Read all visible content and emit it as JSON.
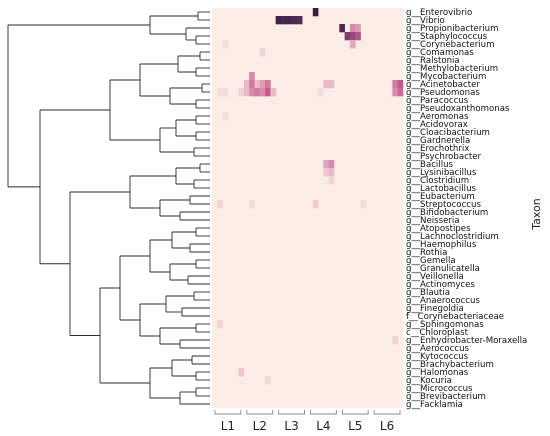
{
  "chart_data": {
    "type": "heatmap",
    "ylabel": "Taxon",
    "groups": [
      "L1",
      "L2",
      "L3",
      "L4",
      "L5",
      "L6"
    ],
    "columns_per_group": 6,
    "taxa": [
      "g__Enterovibrio",
      "g__Vibrio",
      "g__Propionibacterium",
      "g__Staphylococcus",
      "g__Corynebacterium",
      "g__Comamonas",
      "g__Ralstonia",
      "g__Methylobacterium",
      "g__Mycobacterium",
      "g__Acinetobacter",
      "g__Pseudomonas",
      "g__Paracoccus",
      "g__Pseudoxanthomonas",
      "g__Aeromonas",
      "g__Acidovorax",
      "g__Cloacibacterium",
      "g__Gardnerella",
      "g__Erochothrix",
      "g__Psychrobacter",
      "g__Bacillus",
      "g__Lysinibacillus",
      "g__Clostridium",
      "g__Lactobacillus",
      "g__Eubacterium",
      "g__Streptococcus",
      "g__Bifidobacterium",
      "g__Neisseria",
      "g__Atopostipes",
      "g__Lachnoclostridium",
      "g__Haemophilus",
      "g__Rothia",
      "g__Gemella",
      "g__Granulicatella",
      "g__Veillonella",
      "g__Actinomyces",
      "g__Blautia",
      "g__Anaerococcus",
      "g__Finegoldia",
      "f__Corynebacteriaceae",
      "g__Sphingomonas",
      "c__Chloroplast",
      "g__Enhydrobacter-Moraxella",
      "g__Aerococcus",
      "g__Kytococcus",
      "g__Brachybacterium",
      "g__Halomonas",
      "g__Kocuria",
      "g__Micrococcus",
      "g__Brevibacterium",
      "g__Facklamia"
    ],
    "cells": [
      {
        "taxon": "g__Enterovibrio",
        "col": 19,
        "value": 0.95
      },
      {
        "taxon": "g__Vibrio",
        "col": 12,
        "value": 0.92
      },
      {
        "taxon": "g__Vibrio",
        "col": 13,
        "value": 0.88
      },
      {
        "taxon": "g__Vibrio",
        "col": 14,
        "value": 0.9
      },
      {
        "taxon": "g__Vibrio",
        "col": 15,
        "value": 0.86
      },
      {
        "taxon": "g__Vibrio",
        "col": 16,
        "value": 0.85
      },
      {
        "taxon": "g__Propionibacterium",
        "col": 24,
        "value": 0.88
      },
      {
        "taxon": "g__Propionibacterium",
        "col": 26,
        "value": 0.3
      },
      {
        "taxon": "g__Propionibacterium",
        "col": 27,
        "value": 0.25
      },
      {
        "taxon": "g__Staphylococcus",
        "col": 25,
        "value": 0.68
      },
      {
        "taxon": "g__Staphylococcus",
        "col": 26,
        "value": 0.6
      },
      {
        "taxon": "g__Staphylococcus",
        "col": 27,
        "value": 0.5
      },
      {
        "taxon": "g__Corynebacterium",
        "col": 26,
        "value": 0.2
      },
      {
        "taxon": "g__Corynebacterium",
        "col": 2,
        "value": 0.05
      },
      {
        "taxon": "g__Comamonas",
        "col": 9,
        "value": 0.08
      },
      {
        "taxon": "g__Mycobacterium",
        "col": 7,
        "value": 0.3
      },
      {
        "taxon": "g__Acinetobacter",
        "col": 6,
        "value": 0.15
      },
      {
        "taxon": "g__Acinetobacter",
        "col": 7,
        "value": 0.35
      },
      {
        "taxon": "g__Acinetobacter",
        "col": 8,
        "value": 0.15
      },
      {
        "taxon": "g__Acinetobacter",
        "col": 9,
        "value": 0.25
      },
      {
        "taxon": "g__Acinetobacter",
        "col": 10,
        "value": 0.35
      },
      {
        "taxon": "g__Acinetobacter",
        "col": 21,
        "value": 0.15
      },
      {
        "taxon": "g__Acinetobacter",
        "col": 22,
        "value": 0.15
      },
      {
        "taxon": "g__Acinetobacter",
        "col": 34,
        "value": 0.35
      },
      {
        "taxon": "g__Acinetobacter",
        "col": 35,
        "value": 0.45
      },
      {
        "taxon": "g__Pseudomonas",
        "col": 1,
        "value": 0.05
      },
      {
        "taxon": "g__Pseudomonas",
        "col": 2,
        "value": 0.06
      },
      {
        "taxon": "g__Pseudomonas",
        "col": 5,
        "value": 0.08
      },
      {
        "taxon": "g__Pseudomonas",
        "col": 6,
        "value": 0.15
      },
      {
        "taxon": "g__Pseudomonas",
        "col": 7,
        "value": 0.3
      },
      {
        "taxon": "g__Pseudomonas",
        "col": 8,
        "value": 0.35
      },
      {
        "taxon": "g__Pseudomonas",
        "col": 9,
        "value": 0.3
      },
      {
        "taxon": "g__Pseudomonas",
        "col": 10,
        "value": 0.45
      },
      {
        "taxon": "g__Pseudomonas",
        "col": 11,
        "value": 0.15
      },
      {
        "taxon": "g__Pseudomonas",
        "col": 20,
        "value": 0.05
      },
      {
        "taxon": "g__Pseudomonas",
        "col": 34,
        "value": 0.3
      },
      {
        "taxon": "g__Pseudomonas",
        "col": 35,
        "value": 0.4
      },
      {
        "taxon": "g__Aeromonas",
        "col": 2,
        "value": 0.05
      },
      {
        "taxon": "g__Bacillus",
        "col": 21,
        "value": 0.22
      },
      {
        "taxon": "g__Bacillus",
        "col": 22,
        "value": 0.3
      },
      {
        "taxon": "g__Lysinibacillus",
        "col": 21,
        "value": 0.12
      },
      {
        "taxon": "g__Lysinibacillus",
        "col": 22,
        "value": 0.15
      },
      {
        "taxon": "g__Clostridium",
        "col": 22,
        "value": 0.08
      },
      {
        "taxon": "g__Streptococcus",
        "col": 1,
        "value": 0.08
      },
      {
        "taxon": "g__Streptococcus",
        "col": 7,
        "value": 0.06
      },
      {
        "taxon": "g__Streptococcus",
        "col": 19,
        "value": 0.1
      },
      {
        "taxon": "g__Streptococcus",
        "col": 28,
        "value": 0.05
      },
      {
        "taxon": "g__Sphingomonas",
        "col": 1,
        "value": 0.08
      },
      {
        "taxon": "g__Enhydrobacter-Moraxella",
        "col": 34,
        "value": 0.08
      },
      {
        "taxon": "g__Halomonas",
        "col": 5,
        "value": 0.12
      },
      {
        "taxon": "g__Kocuria",
        "col": 10,
        "value": 0.06
      }
    ],
    "min_color": "#fbece6",
    "max_color": "#261a3f"
  }
}
